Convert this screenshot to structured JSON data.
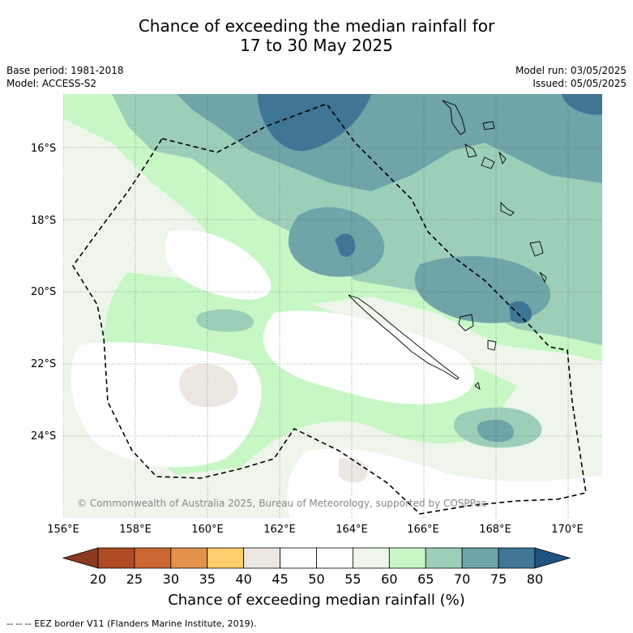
{
  "title": {
    "line1": "Chance of exceeding the median rainfall for",
    "line2": "17 to 30 May 2025"
  },
  "meta_left": {
    "base_period": "Base period: 1981-2018",
    "model": "Model: ACCESS-S2"
  },
  "meta_right": {
    "model_run": "Model run: 03/05/2025",
    "issued": "Issued: 05/05/2025"
  },
  "map": {
    "lat_labels": [
      "16°S",
      "18°S",
      "20°S",
      "22°S",
      "24°S"
    ],
    "lon_labels": [
      "156°E",
      "158°E",
      "160°E",
      "162°E",
      "164°E",
      "166°E",
      "168°E",
      "170°E"
    ],
    "copyright": "© Commonwealth of Australia 2025, Bureau of Meteorology, supported by COSPPac",
    "border_style": "dashed"
  },
  "colorbar": {
    "ticks": [
      "20",
      "25",
      "30",
      "35",
      "40",
      "45",
      "50",
      "55",
      "60",
      "65",
      "70",
      "75",
      "80"
    ],
    "colors": [
      "#b04a25",
      "#cc6632",
      "#e2924a",
      "#fecf6c",
      "#ede7e2",
      "#ffffff",
      "#ffffff",
      "#eef5ea",
      "#c8f7c6",
      "#9ccfb8",
      "#6fa4a8",
      "#3f7696"
    ],
    "under_color": "#8c3a20",
    "over_color": "#1e5380",
    "title": "Chance of exceeding median rainfall (%)"
  },
  "footnote": "--  --  -- EEZ border V11 (Flanders Marine Institute, 2019)."
}
